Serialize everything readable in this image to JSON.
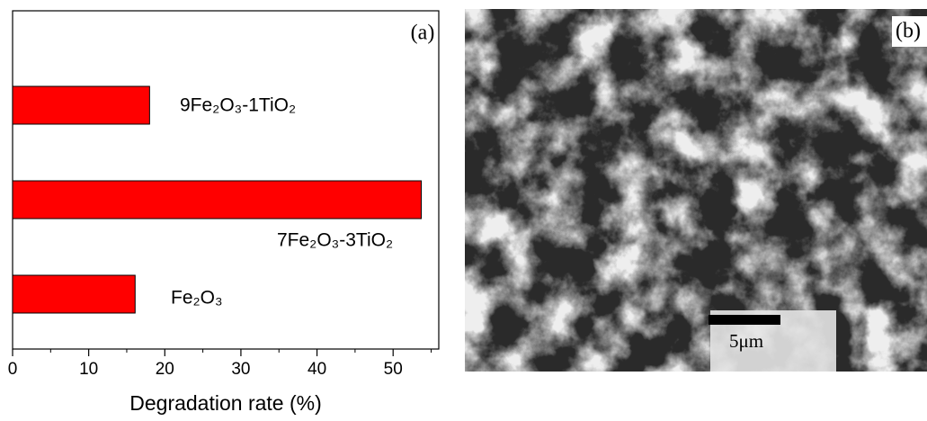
{
  "chart_data": {
    "type": "bar",
    "orientation": "horizontal",
    "panel_label": "(a)",
    "categories": [
      "9Fe₂O₃-1TiO₂",
      "7Fe₂O₃-3TiO₂",
      "Fe₂O₃"
    ],
    "values": [
      18.0,
      53.7,
      16.1
    ],
    "color": "#ff0000",
    "xlim": [
      0,
      56
    ],
    "xticks": [
      0,
      10,
      20,
      30,
      40,
      50
    ],
    "xlabel": "Degradation rate (%)"
  },
  "image_panel": {
    "panel_label": "(b)",
    "scale_bar": "5μm"
  }
}
